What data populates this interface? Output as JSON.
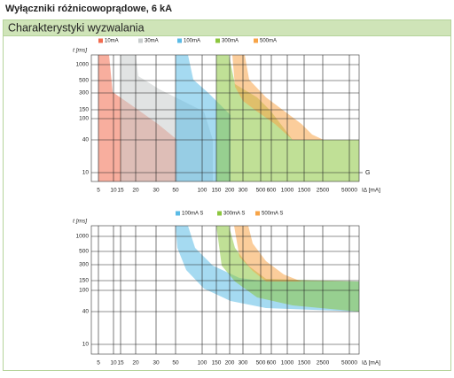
{
  "header": {
    "title": "Wyłączniki różnicowoprądowe, 6 kA"
  },
  "section": {
    "title": "Charakterystyki wyzwalania"
  },
  "charts": [
    {
      "legend": [
        {
          "label": "10mA",
          "color": "#f26b4f"
        },
        {
          "label": "30mA",
          "color": "#c8cccc"
        },
        {
          "label": "100mA",
          "color": "#5bbbe6"
        },
        {
          "label": "300mA",
          "color": "#8cc63f"
        },
        {
          "label": "500mA",
          "color": "#f7a448"
        }
      ],
      "y_label": "t [ms]",
      "y_ticks": [
        "1000",
        "500",
        "300",
        "150",
        "100",
        "40",
        "10"
      ],
      "x_ticks": [
        "5",
        "10",
        "15",
        "20",
        "30",
        "50",
        "100",
        "150",
        "200",
        "300",
        "500",
        "600",
        "1000",
        "1500",
        "2500",
        "50000"
      ],
      "x_label": "IΔ [mA]",
      "line_label": "G"
    },
    {
      "legend": [
        {
          "label": "100mA S",
          "color": "#5bbbe6"
        },
        {
          "label": "300mA S",
          "color": "#8cc63f"
        },
        {
          "label": "500mA S",
          "color": "#f7a448"
        }
      ],
      "y_label": "t [ms]",
      "y_ticks": [
        "1000",
        "500",
        "300",
        "150",
        "100",
        "40",
        "10"
      ],
      "x_ticks": [
        "5",
        "10",
        "15",
        "20",
        "30",
        "50",
        "100",
        "150",
        "200",
        "300",
        "500",
        "600",
        "1000",
        "1500",
        "2500",
        "50000"
      ],
      "x_label": "IΔ [mA]"
    }
  ]
}
